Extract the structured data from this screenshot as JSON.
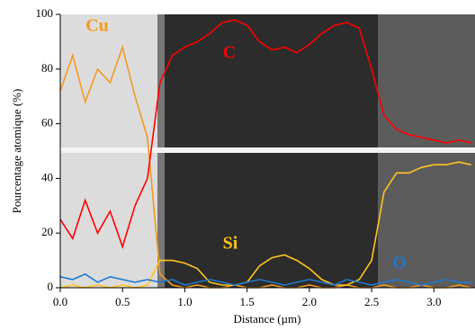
{
  "chart_data": {
    "type": "line",
    "xlabel": "Distance (µm)",
    "ylabel": "Pourcentage atomique (%)",
    "x": [
      0.0,
      0.1,
      0.2,
      0.3,
      0.4,
      0.5,
      0.6,
      0.7,
      0.8,
      0.9,
      1.0,
      1.1,
      1.2,
      1.3,
      1.4,
      1.5,
      1.6,
      1.7,
      1.8,
      1.9,
      2.0,
      2.1,
      2.2,
      2.3,
      2.4,
      2.5,
      2.6,
      2.7,
      2.8,
      2.9,
      3.0,
      3.1,
      3.2,
      3.3
    ],
    "series": [
      {
        "name": "Cu",
        "color": "#f39a1e",
        "values": [
          72,
          85,
          68,
          80,
          75,
          88,
          70,
          55,
          5,
          1,
          0,
          1,
          0,
          0,
          1,
          0,
          0,
          1,
          0,
          0,
          1,
          0,
          0,
          1,
          0,
          0,
          1,
          0,
          0,
          1,
          0,
          0,
          1,
          0
        ]
      },
      {
        "name": "C",
        "color": "#ff0000",
        "values": [
          25,
          18,
          32,
          20,
          28,
          15,
          30,
          40,
          75,
          85,
          88,
          90,
          93,
          97,
          98,
          96,
          90,
          87,
          88,
          86,
          89,
          93,
          96,
          97,
          95,
          80,
          63,
          58,
          56,
          55,
          54,
          53,
          54,
          53
        ]
      },
      {
        "name": "Si",
        "color": "#ffc41e",
        "values": [
          0,
          1,
          0,
          1,
          0,
          1,
          0,
          1,
          10,
          10,
          9,
          7,
          2,
          1,
          1,
          2,
          8,
          11,
          12,
          10,
          7,
          3,
          1,
          1,
          3,
          10,
          35,
          42,
          42,
          44,
          45,
          45,
          46,
          45
        ]
      },
      {
        "name": "O",
        "color": "#1f78d0",
        "values": [
          4,
          3,
          5,
          2,
          4,
          3,
          2,
          3,
          2,
          3,
          1,
          2,
          3,
          2,
          1,
          2,
          3,
          2,
          1,
          2,
          3,
          2,
          1,
          3,
          2,
          1,
          2,
          3,
          2,
          1,
          2,
          3,
          2,
          2
        ]
      }
    ],
    "xlim": [
      0,
      3.33
    ],
    "ylim": [
      0,
      100
    ],
    "xticks": [
      {
        "value": 0,
        "label": "0.0"
      },
      {
        "value": 0.5,
        "label": "0.5"
      },
      {
        "value": 1,
        "label": "1.0"
      },
      {
        "value": 1.5,
        "label": "1.5"
      },
      {
        "value": 2,
        "label": "2.0"
      },
      {
        "value": 2.5,
        "label": "2.5"
      },
      {
        "value": 3,
        "label": "3.0"
      }
    ],
    "yticks": [
      0,
      20,
      40,
      60,
      80,
      100
    ]
  }
}
